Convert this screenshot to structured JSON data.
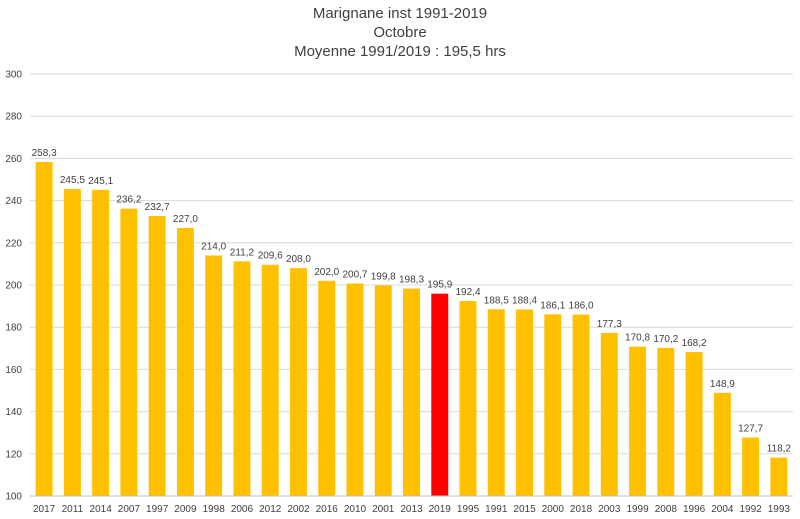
{
  "chart_data": {
    "type": "bar",
    "title": "Marignane inst 1991-2019",
    "subtitle": "Octobre",
    "subtitle2": "Moyenne 1991/2019 : 195,5 hrs",
    "categories": [
      "2017",
      "2011",
      "2014",
      "2007",
      "1997",
      "2009",
      "1998",
      "2006",
      "2012",
      "2002",
      "2016",
      "2010",
      "2001",
      "2013",
      "2019",
      "1995",
      "1991",
      "2015",
      "2000",
      "2018",
      "2003",
      "1999",
      "2008",
      "1996",
      "2004",
      "1992",
      "1993"
    ],
    "values": [
      258.3,
      245.5,
      245.1,
      236.2,
      232.7,
      227.0,
      214.0,
      211.2,
      209.6,
      208.0,
      202.0,
      200.7,
      199.8,
      198.3,
      195.9,
      192.4,
      188.5,
      188.4,
      186.1,
      186.0,
      177.3,
      170.8,
      170.2,
      168.2,
      148.9,
      127.7,
      118.2
    ],
    "value_labels": [
      "258,3",
      "245,5",
      "245,1",
      "236,2",
      "232,7",
      "227,0",
      "214,0",
      "211,2",
      "209,6",
      "208,0",
      "202,0",
      "200,7",
      "199,8",
      "198,3",
      "195,9",
      "192,4",
      "188,5",
      "188,4",
      "186,1",
      "186,0",
      "177,3",
      "170,8",
      "170,2",
      "168,2",
      "148,9",
      "127,7",
      "118,2"
    ],
    "highlight_category": "2019",
    "colors": {
      "bar": "#ffc000",
      "highlight": "#ff0000"
    },
    "ylim": [
      100,
      300
    ],
    "yticks": [
      100,
      120,
      140,
      160,
      180,
      200,
      220,
      240,
      260,
      280,
      300
    ],
    "grid": true,
    "xlabel": "",
    "ylabel": ""
  }
}
